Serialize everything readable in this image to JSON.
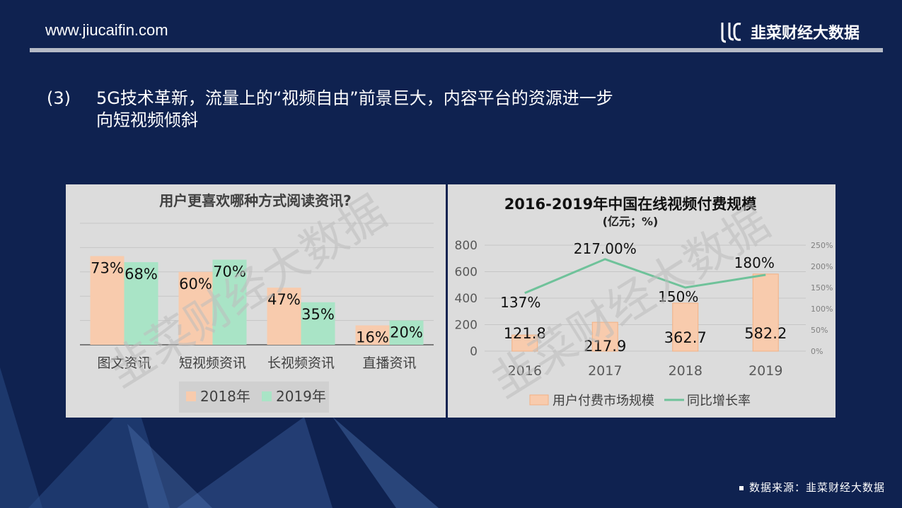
{
  "header": {
    "site_url": "www.jiucaifin.com",
    "brand_name": "韭菜财经大数据"
  },
  "headline": {
    "number": "(3)",
    "line1": "5G技术革新，流量上的“视频自由”前景巨大，内容平台的资源进一步",
    "line2": "向短视频倾斜"
  },
  "watermark": "韭菜财经大数据",
  "source": "数据来源：韭菜财经大数据",
  "colors": {
    "background": "#0f2250",
    "bar_2018": "#f8cbad",
    "bar_2019": "#a9e4c6",
    "line_growth": "#6fc29a",
    "panel": "#dcdcdc"
  },
  "chart_data": [
    {
      "type": "bar",
      "title": "用户更喜欢哪种方式阅读资讯?",
      "categories": [
        "图文资讯",
        "短视频资讯",
        "长视频资讯",
        "直播资讯"
      ],
      "series": [
        {
          "name": "2018年",
          "values": [
            73,
            60,
            47,
            16
          ],
          "labels": [
            "73%",
            "60%",
            "47%",
            "16%"
          ]
        },
        {
          "name": "2019年",
          "values": [
            68,
            70,
            35,
            20
          ],
          "labels": [
            "68%",
            "70%",
            "35%",
            "20%"
          ]
        }
      ],
      "ylim": [
        0,
        100
      ],
      "grid": true,
      "legend_position": "bottom"
    },
    {
      "type": "bar",
      "title": "2016-2019年中国在线视频付费规模",
      "subtitle": "(亿元；%)",
      "categories": [
        "2016",
        "2017",
        "2018",
        "2019"
      ],
      "series": [
        {
          "name": "用户付费市场规模",
          "kind": "bar",
          "axis": "left",
          "values": [
            121.8,
            217.9,
            362.7,
            582.2
          ],
          "labels": [
            "121.8",
            "217.9",
            "362.7",
            "582.2"
          ]
        },
        {
          "name": "同比增长率",
          "kind": "line",
          "axis": "right",
          "values": [
            137,
            217,
            150,
            180
          ],
          "labels": [
            "137%",
            "217.00%",
            "150%",
            "180%"
          ]
        }
      ],
      "ylim_left": [
        0,
        800
      ],
      "yticks_left": [
        "0",
        "200",
        "400",
        "600",
        "800"
      ],
      "ylim_right": [
        0,
        250
      ],
      "yticks_right": [
        "0%",
        "50%",
        "100%",
        "150%",
        "200%",
        "250%"
      ],
      "grid": true,
      "legend_position": "bottom"
    }
  ]
}
